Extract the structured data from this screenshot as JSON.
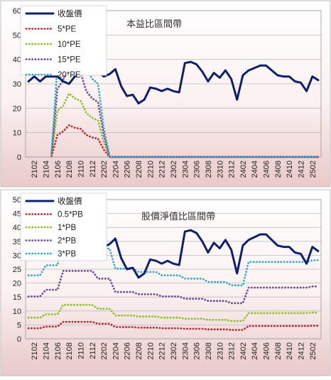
{
  "chart_data": [
    {
      "type": "line",
      "title": "本益比區間帶",
      "xlabel": "",
      "ylabel": "",
      "ylim": [
        0,
        60
      ],
      "yticks": [
        0,
        10,
        20,
        30,
        40,
        50,
        60
      ],
      "grid": "horizontal",
      "legend_position": "top-left",
      "x": [
        "2101",
        "2102",
        "2103",
        "2104",
        "2105",
        "2106",
        "2107",
        "2108",
        "2109",
        "2110",
        "2111",
        "2112",
        "2201",
        "2202",
        "2203",
        "2204",
        "2205",
        "2206",
        "2207",
        "2208",
        "2209",
        "2210",
        "2211",
        "2212",
        "2301",
        "2302",
        "2303",
        "2304",
        "2305",
        "2306",
        "2307",
        "2308",
        "2309",
        "2310",
        "2311",
        "2312",
        "2401",
        "2402",
        "2403",
        "2404",
        "2405",
        "2406",
        "2407",
        "2408",
        "2409",
        "2410",
        "2411",
        "2412",
        "2501",
        "2502",
        "2503"
      ],
      "xtick_labels": [
        "2102",
        "2104",
        "2106",
        "2108",
        "2110",
        "2112",
        "2202",
        "2204",
        "2206",
        "2208",
        "2210",
        "2212",
        "2302",
        "2304",
        "2306",
        "2308",
        "2310",
        "2312",
        "2402",
        "2404",
        "2406",
        "2408",
        "2410",
        "2412",
        "2502"
      ],
      "series": [
        {
          "name": "收盤價",
          "color": "#0e2070",
          "style": "solid",
          "values": [
            31,
            33,
            31,
            33,
            33,
            33,
            31,
            30,
            33,
            35,
            34,
            38,
            35,
            33,
            34,
            36,
            29,
            25,
            25.5,
            22,
            23.5,
            28.5,
            28,
            27,
            28,
            27,
            26.5,
            38.5,
            39,
            38,
            35,
            31,
            34.5,
            32.5,
            35.5,
            32,
            23.5,
            33.5,
            35.5,
            36.5,
            37.5,
            37.5,
            35.5,
            33.5,
            33,
            33,
            31,
            30.5,
            27,
            33,
            31.5
          ]
        },
        {
          "name": "5*PE",
          "color": "#c0282f",
          "style": "dotted",
          "values": [
            0,
            0,
            0,
            0,
            0,
            0,
            0,
            0,
            0,
            0,
            0,
            0,
            0,
            0,
            0,
            0,
            0,
            0,
            0,
            0,
            0,
            0,
            0,
            0,
            0,
            0,
            0,
            0,
            0,
            0,
            0,
            0,
            0,
            0,
            0,
            0,
            0,
            0,
            0,
            0,
            0,
            0,
            0,
            0,
            0,
            0,
            0,
            0,
            0,
            0,
            0
          ]
        },
        {
          "name": "10*PE",
          "color": "#8fbf2a",
          "style": "dotted",
          "values": [
            0,
            0,
            0,
            0,
            0,
            0,
            0,
            0,
            0,
            0,
            0,
            0,
            0,
            0,
            0,
            0,
            0,
            0,
            0,
            0,
            0,
            0,
            0,
            0,
            0,
            0,
            0,
            0,
            0,
            0,
            0,
            0,
            0,
            0,
            0,
            0,
            0,
            0,
            0,
            0,
            0,
            0,
            0,
            0,
            0,
            0,
            0,
            0,
            0,
            0,
            0
          ]
        },
        {
          "name": "15*PE",
          "color": "#6f4a96",
          "style": "dotted",
          "values": [
            0,
            0,
            0,
            0,
            0,
            0,
            0,
            0,
            0,
            0,
            0,
            0,
            0,
            0,
            0,
            0,
            0,
            0,
            0,
            0,
            0,
            0,
            0,
            0,
            0,
            0,
            0,
            0,
            0,
            0,
            0,
            0,
            0,
            0,
            0,
            0,
            0,
            0,
            0,
            0,
            0,
            0,
            0,
            0,
            0,
            0,
            0,
            0,
            0,
            0,
            0
          ]
        },
        {
          "name": "20*PE",
          "color": "#3aa9c6",
          "style": "dotted",
          "values": [
            0,
            0,
            0,
            0,
            0,
            0,
            0,
            0,
            0,
            0,
            0,
            0,
            0,
            0,
            0,
            0,
            0,
            0,
            0,
            0,
            0,
            0,
            0,
            0,
            0,
            0,
            0,
            0,
            0,
            0,
            0,
            0,
            0,
            0,
            0,
            0,
            0,
            0,
            0,
            0,
            0,
            0,
            0,
            0,
            0,
            0,
            0,
            0,
            0,
            0,
            0
          ]
        }
      ],
      "pe_start_values": {
        "5*PE": [
          null,
          null,
          null,
          null,
          0.5,
          9,
          10.5,
          13,
          12,
          11.5,
          9,
          8,
          7.5,
          3,
          0
        ],
        "10*PE": [
          null,
          null,
          null,
          null,
          1,
          19,
          21,
          26,
          24,
          23,
          18,
          16,
          15,
          6,
          0
        ],
        "15*PE": [
          null,
          null,
          null,
          null,
          1.5,
          28,
          31.5,
          39,
          36,
          34.5,
          27,
          24,
          22.5,
          9,
          0
        ],
        "20*PE": [
          null,
          null,
          null,
          null,
          2,
          38,
          42,
          52,
          48,
          46,
          36,
          32,
          30,
          12,
          0
        ]
      }
    },
    {
      "type": "line",
      "title": "股價淨值比區間帶",
      "xlabel": "",
      "ylabel": "",
      "ylim": [
        0,
        50
      ],
      "yticks": [
        0,
        5,
        10,
        15,
        20,
        25,
        30,
        35,
        40,
        45,
        50
      ],
      "grid": "horizontal",
      "legend_position": "top-left",
      "x": [
        "2101",
        "2102",
        "2103",
        "2104",
        "2105",
        "2106",
        "2107",
        "2108",
        "2109",
        "2110",
        "2111",
        "2112",
        "2201",
        "2202",
        "2203",
        "2204",
        "2205",
        "2206",
        "2207",
        "2208",
        "2209",
        "2210",
        "2211",
        "2212",
        "2301",
        "2302",
        "2303",
        "2304",
        "2305",
        "2306",
        "2307",
        "2308",
        "2309",
        "2310",
        "2311",
        "2312",
        "2401",
        "2402",
        "2403",
        "2404",
        "2405",
        "2406",
        "2407",
        "2408",
        "2409",
        "2410",
        "2411",
        "2412",
        "2501",
        "2502",
        "2503"
      ],
      "xtick_labels": [
        "2102",
        "2104",
        "2106",
        "2108",
        "2110",
        "2112",
        "2202",
        "2204",
        "2206",
        "2208",
        "2210",
        "2212",
        "2302",
        "2304",
        "2306",
        "2308",
        "2310",
        "2312",
        "2402",
        "2404",
        "2406",
        "2408",
        "2410",
        "2412",
        "2502"
      ],
      "series": [
        {
          "name": "收盤價",
          "color": "#0e2070",
          "style": "solid",
          "values": [
            31,
            33,
            31,
            33,
            33,
            33,
            31,
            30,
            33,
            35,
            34,
            38,
            35,
            33,
            34,
            36,
            29,
            25,
            25.5,
            22,
            23.5,
            28.5,
            28,
            27,
            28,
            27,
            26.5,
            38.5,
            39,
            38,
            35,
            31,
            34.5,
            32.5,
            35.5,
            32,
            23.5,
            33.5,
            35.5,
            36.5,
            37.5,
            37.5,
            35.5,
            33.5,
            33,
            33,
            31,
            30.5,
            27,
            33,
            31.5
          ]
        },
        {
          "name": "0.5*PB",
          "color": "#c0282f",
          "style": "dotted",
          "values": [
            3.8,
            3.8,
            3.8,
            4.4,
            4.4,
            4.4,
            6.1,
            6.1,
            6.1,
            6.1,
            6.1,
            6.1,
            5.4,
            5.4,
            5.4,
            4.2,
            4.2,
            4.2,
            4.2,
            4.0,
            4.0,
            4.0,
            4.0,
            3.8,
            3.8,
            3.8,
            3.8,
            3.6,
            3.6,
            3.6,
            3.6,
            3.4,
            3.4,
            3.4,
            3.4,
            3.2,
            3.2,
            3.2,
            4.6,
            4.6,
            4.6,
            4.6,
            4.6,
            4.6,
            4.6,
            4.6,
            4.6,
            4.6,
            4.6,
            4.7,
            4.7
          ]
        },
        {
          "name": "1*PB",
          "color": "#8fbf2a",
          "style": "dotted",
          "values": [
            7.6,
            7.6,
            7.6,
            8.8,
            8.8,
            8.8,
            12.2,
            12.2,
            12.2,
            12.2,
            12.2,
            12.2,
            10.8,
            10.8,
            10.8,
            8.4,
            8.4,
            8.4,
            8.4,
            8.0,
            8.0,
            8.0,
            8.0,
            7.6,
            7.6,
            7.6,
            7.6,
            7.2,
            7.2,
            7.2,
            7.2,
            6.8,
            6.8,
            6.8,
            6.8,
            6.4,
            6.4,
            6.4,
            9.2,
            9.2,
            9.2,
            9.2,
            9.2,
            9.2,
            9.2,
            9.2,
            9.2,
            9.2,
            9.2,
            9.4,
            9.4
          ]
        },
        {
          "name": "2*PB",
          "color": "#6f4a96",
          "style": "dotted",
          "values": [
            15.2,
            15.2,
            15.2,
            17.6,
            17.6,
            17.6,
            24.4,
            24.4,
            24.4,
            24.4,
            24.4,
            24.4,
            21.6,
            21.6,
            21.6,
            16.8,
            16.8,
            16.8,
            16.8,
            16.0,
            16.0,
            16.0,
            16.0,
            15.2,
            15.2,
            15.2,
            15.2,
            14.4,
            14.4,
            14.4,
            14.4,
            13.6,
            13.6,
            13.6,
            13.6,
            12.8,
            12.8,
            12.8,
            18.4,
            18.4,
            18.4,
            18.4,
            18.4,
            18.4,
            18.4,
            18.4,
            18.4,
            18.4,
            18.4,
            18.8,
            18.8
          ]
        },
        {
          "name": "3*PB",
          "color": "#3aa9c6",
          "style": "dotted",
          "values": [
            22.8,
            22.8,
            22.8,
            26.4,
            26.4,
            26.4,
            36.6,
            36.6,
            36.6,
            36.6,
            36.6,
            36.6,
            32.4,
            32.4,
            32.4,
            25.2,
            25.2,
            25.2,
            25.2,
            24.0,
            24.0,
            24.0,
            24.0,
            22.8,
            22.8,
            22.8,
            22.8,
            21.6,
            21.6,
            21.6,
            21.6,
            20.4,
            20.4,
            20.4,
            20.4,
            19.2,
            19.2,
            19.2,
            27.6,
            27.6,
            27.6,
            27.6,
            27.6,
            27.6,
            27.6,
            27.6,
            27.6,
            27.6,
            27.6,
            28.2,
            28.2
          ]
        }
      ]
    }
  ]
}
